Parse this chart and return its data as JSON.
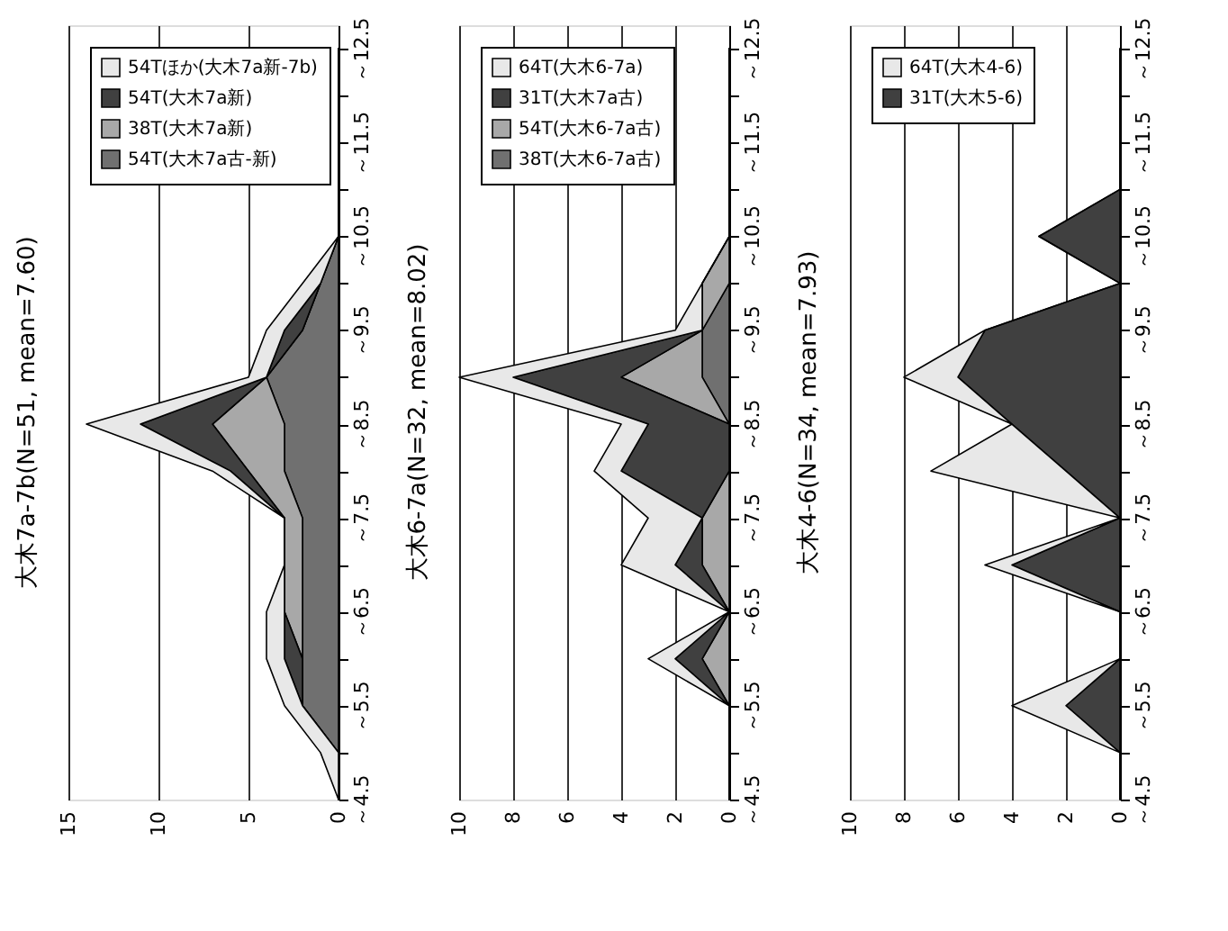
{
  "chart_data": [
    {
      "type": "area",
      "stacked": true,
      "orientation": "horizontal",
      "title": "大木7a-7b(N=51, mean=7.60)",
      "categories": [
        "～12.5",
        null,
        "～11.5",
        null,
        "～10.5",
        null,
        "～9.5",
        null,
        "～8.5",
        null,
        "～7.5",
        null,
        "～6.5",
        null,
        "～5.5",
        null,
        "～4.5"
      ],
      "series": [
        {
          "name": "54T(大木7a古-新)",
          "color": "#707070",
          "values": [
            0,
            0,
            0,
            0,
            0,
            1,
            2,
            4,
            3,
            3,
            2,
            2,
            2,
            2,
            2,
            0,
            0
          ]
        },
        {
          "name": "38T(大木7a新)",
          "color": "#a8a8a8",
          "values": [
            0,
            0,
            0,
            0,
            0,
            0,
            0,
            0,
            4,
            2,
            1,
            1,
            1,
            0,
            0,
            0,
            0
          ]
        },
        {
          "name": "54T(大木7a新)",
          "color": "#404040",
          "values": [
            0,
            0,
            0,
            0,
            0,
            0,
            1,
            0,
            4,
            1,
            0,
            0,
            0,
            1,
            0,
            0,
            0
          ]
        },
        {
          "name": "54Tほか(大木7a新-7b)",
          "color": "#e8e8e8",
          "values": [
            0,
            0,
            0,
            0,
            0,
            1,
            1,
            1,
            3,
            1,
            0,
            0,
            1,
            1,
            1,
            1,
            0
          ]
        }
      ],
      "xlim": [
        15,
        0
      ],
      "xticks": [
        15,
        10,
        5,
        0
      ],
      "grid": "x",
      "legend": "top left"
    },
    {
      "type": "area",
      "stacked": true,
      "orientation": "horizontal",
      "title": "大木6-7a(N=32, mean=8.02)",
      "categories": [
        "～12.5",
        null,
        "～11.5",
        null,
        "～10.5",
        null,
        "～9.5",
        null,
        "～8.5",
        null,
        "～7.5",
        null,
        "～6.5",
        null,
        "～5.5",
        null,
        "～4.5"
      ],
      "series": [
        {
          "name": "38T(大木6-7a古)",
          "color": "#707070",
          "values": [
            0,
            0,
            0,
            0,
            0,
            0,
            1,
            1,
            0,
            0,
            0,
            0,
            0,
            0,
            0,
            0,
            0
          ]
        },
        {
          "name": "54T(大木6-7a古)",
          "color": "#a8a8a8",
          "values": [
            0,
            0,
            0,
            0,
            0,
            1,
            0,
            3,
            0,
            0,
            1,
            1,
            0,
            1,
            0,
            0,
            0
          ]
        },
        {
          "name": "31T(大木7a古)",
          "color": "#404040",
          "values": [
            0,
            0,
            0,
            0,
            0,
            0,
            0,
            4,
            3,
            4,
            0,
            1,
            0,
            1,
            0,
            0,
            0
          ]
        },
        {
          "name": "64T(大木6-7a)",
          "color": "#e8e8e8",
          "values": [
            0,
            0,
            0,
            0,
            0,
            0,
            1,
            2,
            1,
            1,
            2,
            2,
            0,
            1,
            0,
            0,
            0
          ]
        }
      ],
      "xlim": [
        10,
        0
      ],
      "xticks": [
        10,
        8,
        6,
        4,
        2,
        0
      ],
      "grid": "x",
      "legend": "top left"
    },
    {
      "type": "area",
      "stacked": true,
      "orientation": "horizontal",
      "title": "大木4-6(N=34, mean=7.93)",
      "categories": [
        "～12.5",
        null,
        "～11.5",
        null,
        "～10.5",
        null,
        "～9.5",
        null,
        "～8.5",
        null,
        "～7.5",
        null,
        "～6.5",
        null,
        "～5.5",
        null,
        "～4.5"
      ],
      "series": [
        {
          "name": "31T(大木5-6)",
          "color": "#404040",
          "values": [
            0,
            0,
            0,
            0,
            3,
            0,
            5,
            6,
            4,
            2,
            0,
            4,
            0,
            0,
            2,
            0,
            0
          ]
        },
        {
          "name": "64T(大木4-6)",
          "color": "#e8e8e8",
          "values": [
            0,
            0,
            0,
            0,
            0,
            0,
            0,
            2,
            0,
            5,
            0,
            1,
            0,
            0,
            2,
            0,
            0
          ]
        }
      ],
      "xlim": [
        10,
        0
      ],
      "xticks": [
        10,
        8,
        6,
        4,
        2,
        0
      ],
      "grid": "x",
      "legend": "top left"
    }
  ]
}
